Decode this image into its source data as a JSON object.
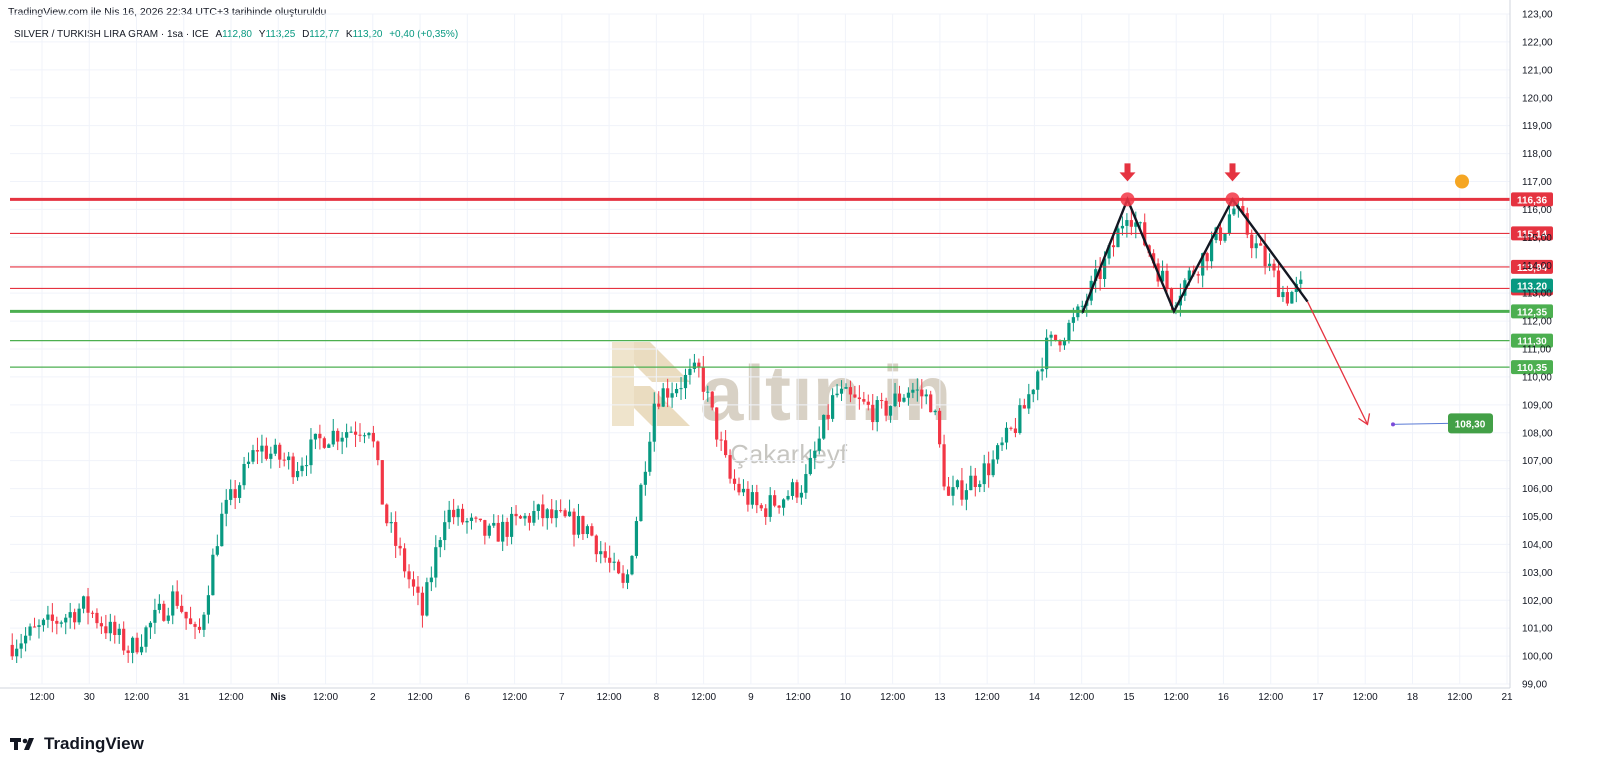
{
  "header": {
    "created_text": "TradingView.com ile Nis 16, 2026 22:34 UTC+3 tarihinde oluşturuldu"
  },
  "legend": {
    "symbol": "SILVER / TURKISH LIRA GRAM · 1sa · ICE",
    "open_label": "A",
    "open_value": "112,80",
    "high_label": "Y",
    "high_value": "113,25",
    "low_label": "D",
    "low_value": "112,77",
    "close_label": "K",
    "close_value": "113,20",
    "change": "+0,40 (+0,35%)"
  },
  "footer": {
    "brand": "TradingView"
  },
  "watermark": {
    "brand": "altın.in",
    "author": "Çakarkeyf"
  },
  "colors": {
    "up": "#089981",
    "down": "#F23645",
    "resistance": "#E53340",
    "support": "#4CAF50",
    "target": "#43A047",
    "pattern": "#131722"
  },
  "chart_data": {
    "type": "candlestick",
    "title": "SILVER / TURKISH LIRA GRAM · 1sa · ICE",
    "ylim": [
      99,
      123
    ],
    "y_ticks": [
      "99,00",
      "100,00",
      "101,00",
      "102,00",
      "103,00",
      "104,00",
      "105,00",
      "106,00",
      "107,00",
      "108,00",
      "109,00",
      "110,00",
      "111,00",
      "112,00",
      "113,00",
      "114,00",
      "115,00",
      "116,00",
      "117,00",
      "118,00",
      "119,00",
      "120,00",
      "121,00",
      "122,00",
      "123,00"
    ],
    "x_ticks": [
      "12:00",
      "30",
      "12:00",
      "31",
      "12:00",
      "Nis",
      "12:00",
      "2",
      "12:00",
      "6",
      "12:00",
      "7",
      "12:00",
      "8",
      "12:00",
      "9",
      "12:00",
      "10",
      "12:00",
      "13",
      "12:00",
      "14",
      "12:00",
      "15",
      "12:00",
      "16",
      "12:00",
      "17",
      "12:00",
      "18",
      "12:00",
      "21"
    ],
    "anchors": [
      {
        "t": 0,
        "p": 100.4
      },
      {
        "t": 0.05,
        "p": 101.8
      },
      {
        "t": 0.08,
        "p": 100.2
      },
      {
        "t": 0.11,
        "p": 102.2
      },
      {
        "t": 0.125,
        "p": 100.5
      },
      {
        "t": 0.14,
        "p": 104.8
      },
      {
        "t": 0.165,
        "p": 107.5
      },
      {
        "t": 0.19,
        "p": 106.8
      },
      {
        "t": 0.21,
        "p": 107.9
      },
      {
        "t": 0.24,
        "p": 108.3
      },
      {
        "t": 0.25,
        "p": 105.0
      },
      {
        "t": 0.275,
        "p": 101.5
      },
      {
        "t": 0.29,
        "p": 105.2
      },
      {
        "t": 0.32,
        "p": 104.3
      },
      {
        "t": 0.35,
        "p": 105.1
      },
      {
        "t": 0.385,
        "p": 104.6
      },
      {
        "t": 0.41,
        "p": 102.3
      },
      {
        "t": 0.43,
        "p": 109.3
      },
      {
        "t": 0.46,
        "p": 110.2
      },
      {
        "t": 0.48,
        "p": 106.3
      },
      {
        "t": 0.5,
        "p": 105.2
      },
      {
        "t": 0.53,
        "p": 106.2
      },
      {
        "t": 0.55,
        "p": 109.4
      },
      {
        "t": 0.58,
        "p": 108.7
      },
      {
        "t": 0.6,
        "p": 109.6
      },
      {
        "t": 0.615,
        "p": 109.1
      },
      {
        "t": 0.625,
        "p": 105.6
      },
      {
        "t": 0.655,
        "p": 106.9
      },
      {
        "t": 0.675,
        "p": 108.7
      },
      {
        "t": 0.69,
        "p": 111.0
      },
      {
        "t": 0.71,
        "p": 112.0
      },
      {
        "t": 0.735,
        "p": 114.6
      },
      {
        "t": 0.745,
        "p": 116.1
      },
      {
        "t": 0.775,
        "p": 112.8
      },
      {
        "t": 0.81,
        "p": 115.4
      },
      {
        "t": 0.815,
        "p": 116.1
      },
      {
        "t": 0.85,
        "p": 112.9
      },
      {
        "t": 0.862,
        "p": 113.2
      }
    ],
    "horizontal_levels": [
      {
        "label": "116,36",
        "value": 116.36,
        "kind": "resistance",
        "line": "bold"
      },
      {
        "label": "115,14",
        "value": 115.14,
        "kind": "resistance",
        "line": "thin"
      },
      {
        "label": "113,94",
        "value": 113.94,
        "kind": "resistance",
        "line": "thin"
      },
      {
        "label": "113,17",
        "value": 113.17,
        "kind": "resistance",
        "line": "thin"
      },
      {
        "label": "112,35",
        "value": 112.35,
        "kind": "support",
        "line": "bold"
      },
      {
        "label": "111,30",
        "value": 111.3,
        "kind": "support",
        "line": "thin"
      },
      {
        "label": "110,35",
        "value": 110.35,
        "kind": "support",
        "line": "thin"
      }
    ],
    "current_price": {
      "label": "113,20",
      "value": 113.2
    },
    "double_top": [
      {
        "t": 0.715,
        "p": 112.3
      },
      {
        "t": 0.745,
        "p": 116.36
      },
      {
        "t": 0.776,
        "p": 112.35
      },
      {
        "t": 0.815,
        "p": 116.36
      },
      {
        "t": 0.865,
        "p": 112.7
      }
    ],
    "projection": {
      "from": {
        "t": 0.865,
        "p": 112.7
      },
      "to": {
        "t": 0.905,
        "p": 108.3
      }
    },
    "target": {
      "label": "108,30",
      "value": 108.3
    }
  }
}
